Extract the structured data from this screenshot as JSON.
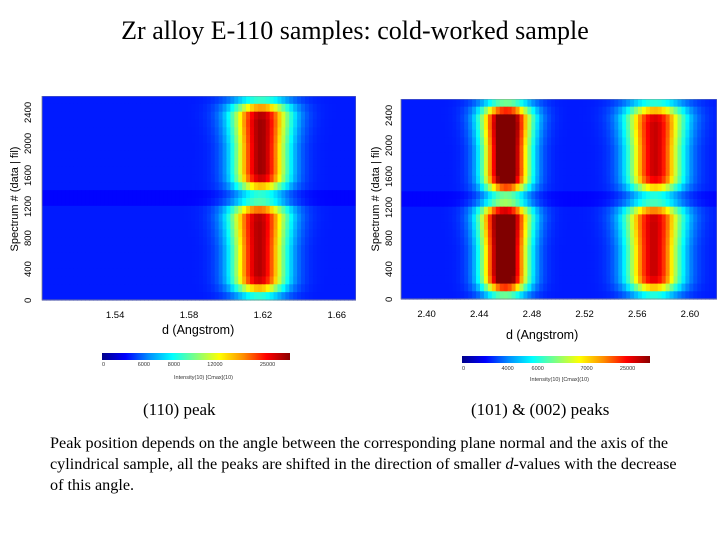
{
  "title": "Zr alloy E-110 samples: cold-worked sample",
  "chart_data": [
    {
      "type": "heatmap",
      "caption": "(110) peak",
      "xlabel": "d (Angstrom)",
      "ylabel": "Spectrum # (data | fil)",
      "xlim": [
        1.5,
        1.67
      ],
      "ylim": [
        0,
        2600
      ],
      "x_ticks": [
        "1.54",
        "1.58",
        "1.62",
        "1.66"
      ],
      "y_ticks": [
        "0",
        "400",
        "800",
        "1200",
        "1600",
        "2000",
        "2400"
      ],
      "x_tick_values": [
        1.54,
        1.58,
        1.62,
        1.66
      ],
      "y_tick_values": [
        0,
        400,
        800,
        1200,
        1600,
        2000,
        2400
      ],
      "segment_boundary": 1320,
      "peaks": [
        {
          "d": 1.6175,
          "width": 0.01,
          "spectrum_range": [
            0,
            1320
          ],
          "intensity": 0.8
        },
        {
          "d": 1.6185,
          "width": 0.01,
          "spectrum_range": [
            1320,
            2600
          ],
          "intensity": 0.82
        }
      ],
      "colorbar_ticks": [
        "0",
        "6000",
        "8000",
        "12000",
        "25000"
      ],
      "colorbar_label": "Intensity(10) [Cmax](10)"
    },
    {
      "type": "heatmap",
      "caption": "(101) & (002) peaks",
      "xlabel": "d (Angstrom)",
      "ylabel": "Spectrum # (data | fil)",
      "xlim": [
        2.38,
        2.62
      ],
      "ylim": [
        0,
        2600
      ],
      "x_ticks": [
        "2.40",
        "2.44",
        "2.48",
        "2.52",
        "2.56",
        "2.60"
      ],
      "y_ticks": [
        "0",
        "400",
        "800",
        "1200",
        "1600",
        "2000",
        "2400"
      ],
      "x_tick_values": [
        2.4,
        2.44,
        2.48,
        2.52,
        2.56,
        2.6
      ],
      "y_tick_values": [
        0,
        400,
        800,
        1200,
        1600,
        2000,
        2400
      ],
      "segment_boundary": 1320,
      "peaks": [
        {
          "d": 2.459,
          "width": 0.012,
          "spectrum_range": [
            0,
            1320
          ],
          "intensity": 1.0
        },
        {
          "d": 2.46,
          "width": 0.012,
          "spectrum_range": [
            1320,
            2600
          ],
          "intensity": 1.0
        },
        {
          "d": 2.572,
          "width": 0.014,
          "spectrum_range": [
            0,
            1320
          ],
          "intensity": 0.78
        },
        {
          "d": 2.573,
          "width": 0.014,
          "spectrum_range": [
            1320,
            2600
          ],
          "intensity": 0.78
        }
      ],
      "colorbar_ticks": [
        "0",
        "4000",
        "6000",
        "7000",
        "25000"
      ],
      "colorbar_label": "Intensity(10) [Cmax](10)"
    }
  ],
  "paragraph": {
    "part1": "Peak position depends on the angle between the corresponding plane normal and the axis of the cylindrical sample, all the peaks are shifted in the direction of smaller ",
    "italic": "d",
    "part2": "-values with the decrease of this angle."
  },
  "colors": {
    "background": "#ffffff",
    "text": "#000000"
  }
}
